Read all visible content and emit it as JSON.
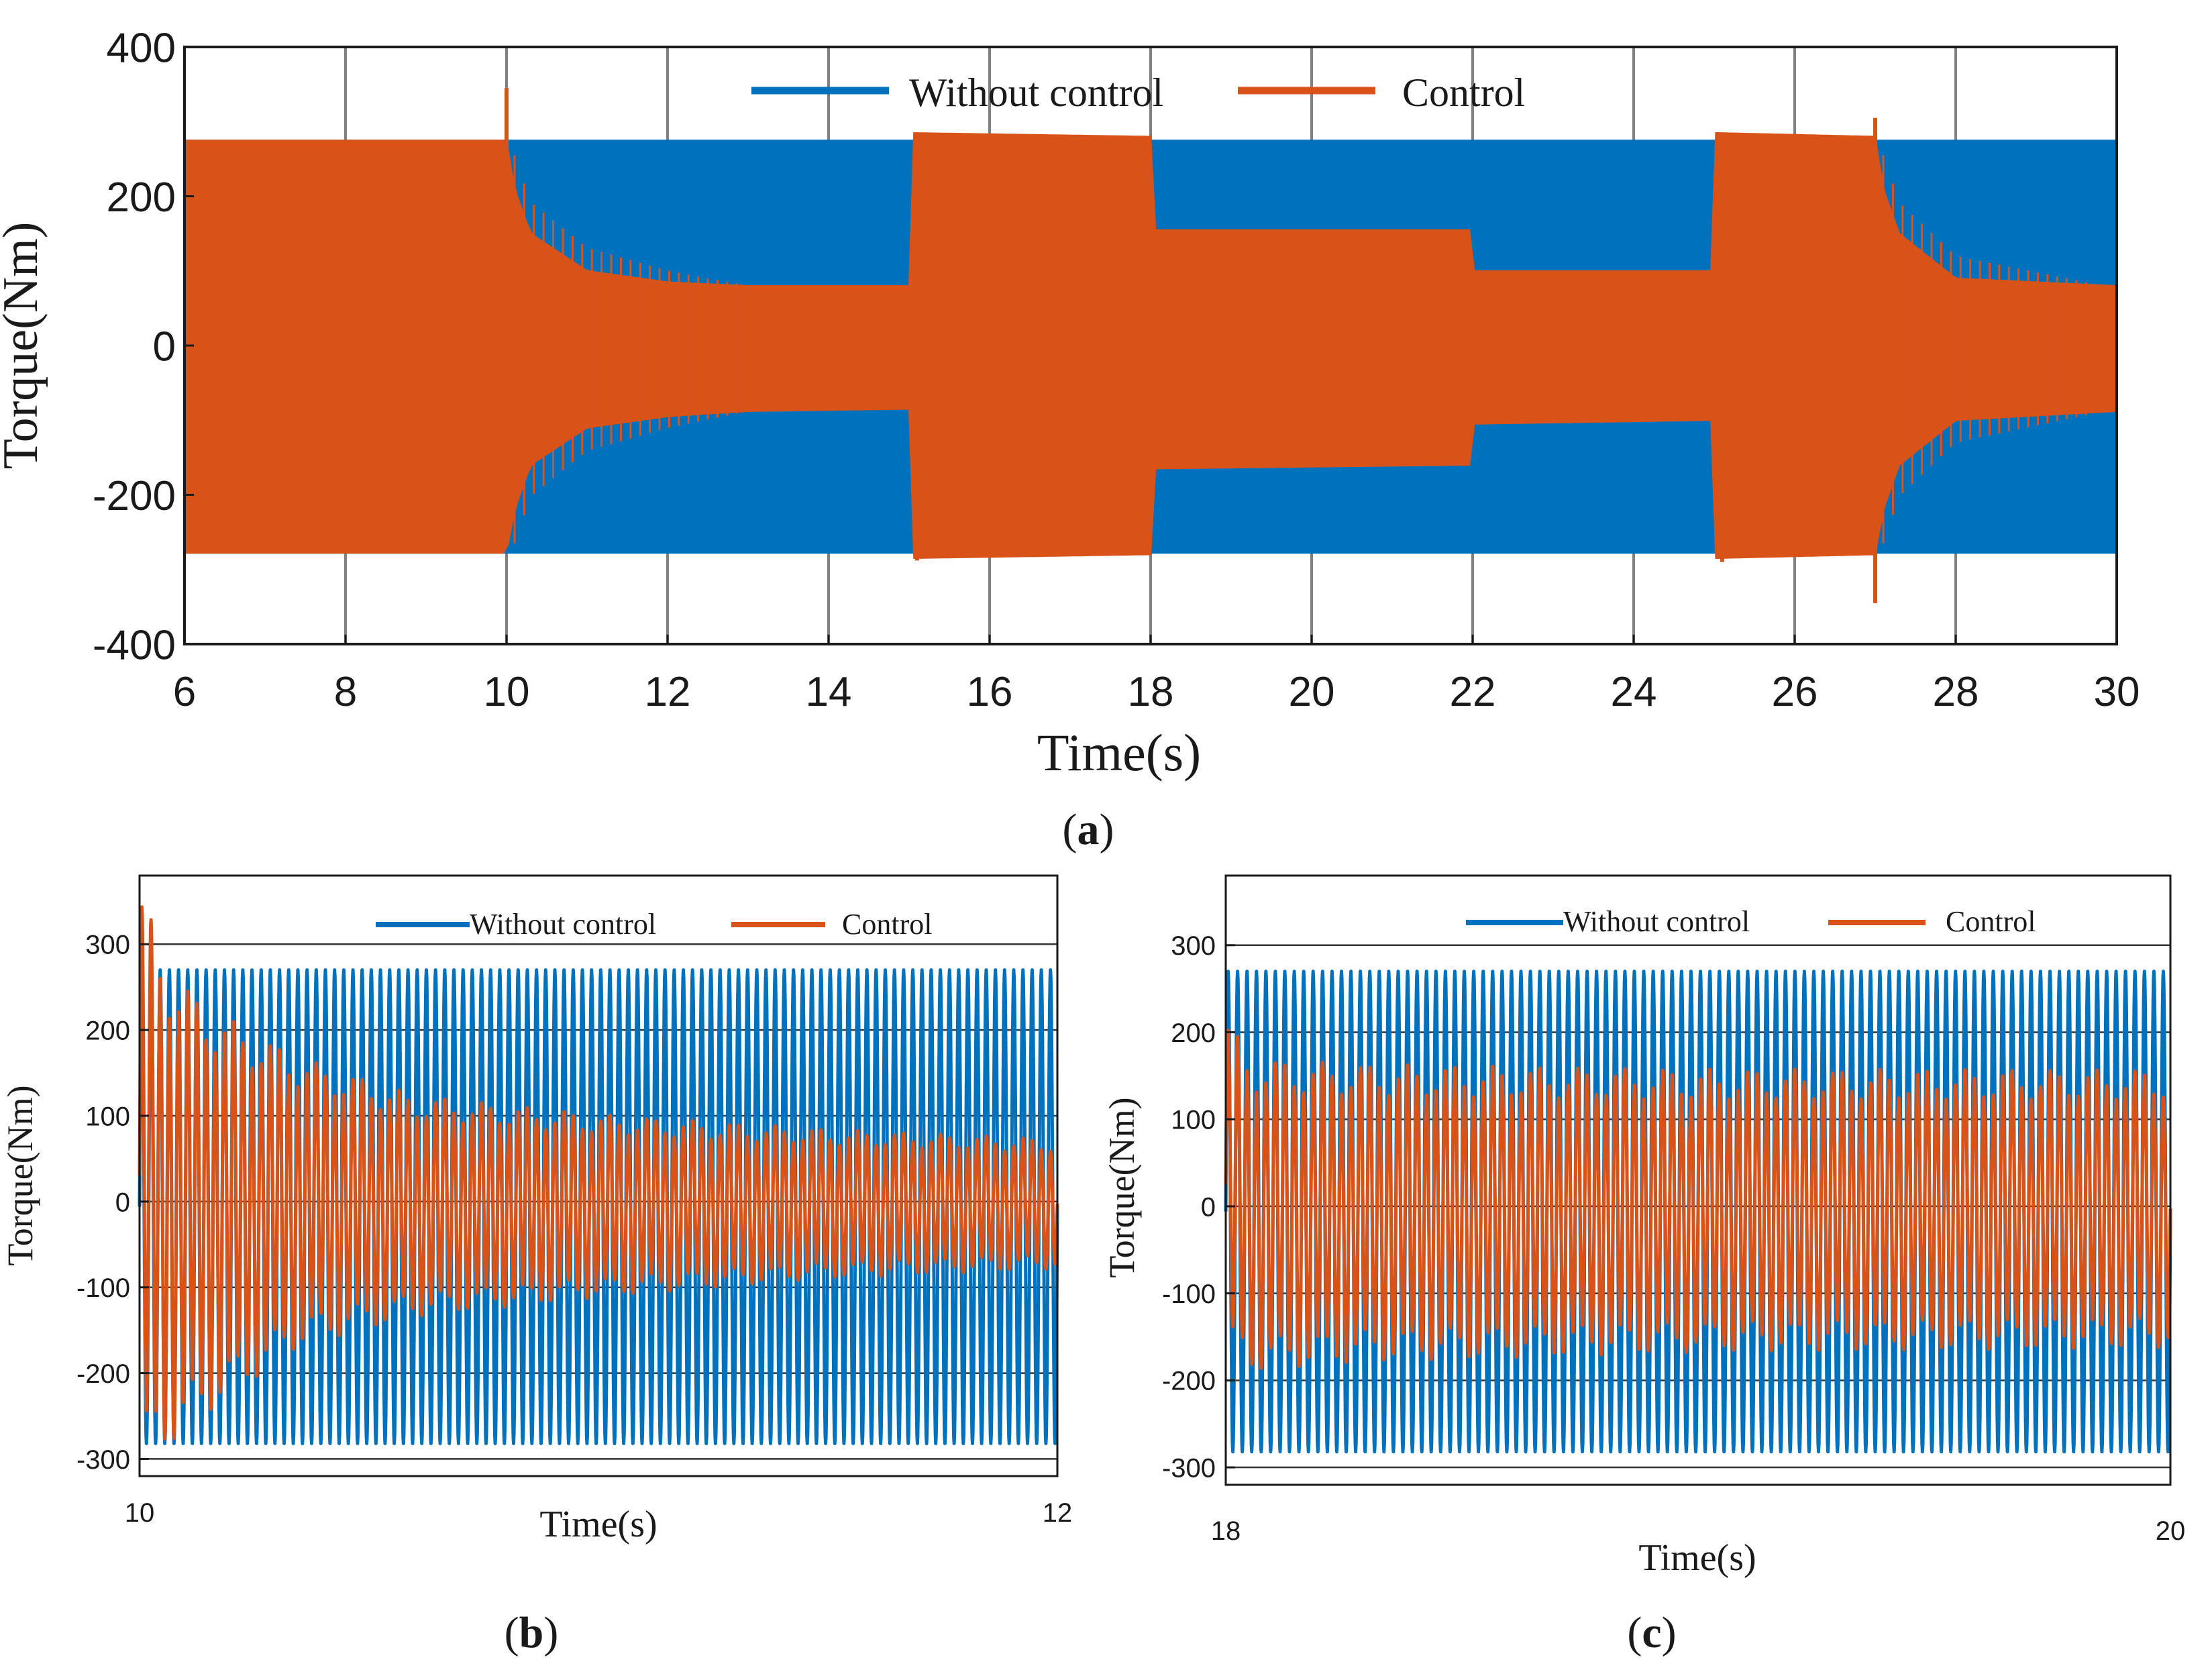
{
  "colors": {
    "without": "#0072BD",
    "control": "#D95319",
    "grid": "#808080",
    "axis": "#1a1a1a"
  },
  "chart_data": [
    {
      "id": "a",
      "type": "line",
      "caption": "a",
      "xlabel": "Time(s)",
      "ylabel": "Torque(Nm)",
      "xlim": [
        6,
        30
      ],
      "ylim": [
        -400,
        400
      ],
      "xticks": [
        6,
        8,
        10,
        12,
        14,
        16,
        18,
        20,
        22,
        24,
        26,
        28,
        30
      ],
      "yticks": [
        -400,
        -200,
        0,
        200,
        400
      ],
      "ytick_labels": [
        "-400",
        "-200",
        "0",
        "200",
        "400"
      ],
      "xtick_labels": [
        "6",
        "8",
        "10",
        "12",
        "14",
        "16",
        "18",
        "20",
        "22",
        "24",
        "26",
        "28",
        "30"
      ],
      "legend": [
        "Without control",
        "Control"
      ],
      "grid": "vertical",
      "series": [
        {
          "name": "Without control",
          "type": "envelope",
          "t": [
            6,
            30
          ],
          "upper": [
            275,
            275
          ],
          "lower": [
            -278,
            -278
          ]
        },
        {
          "name": "Control",
          "type": "envelope",
          "t": [
            6,
            10,
            10.1,
            10.3,
            11,
            12,
            13,
            15,
            15.01,
            18,
            18.01,
            22,
            22.01,
            25,
            25.01,
            27,
            27.1,
            27.3,
            28,
            30
          ],
          "upper": [
            275,
            275,
            210,
            150,
            100,
            85,
            80,
            80,
            285,
            280,
            155,
            155,
            100,
            100,
            285,
            280,
            210,
            150,
            90,
            80
          ],
          "lower": [
            -278,
            -278,
            -220,
            -160,
            -110,
            -95,
            -88,
            -85,
            -285,
            -280,
            -165,
            -160,
            -105,
            -100,
            -285,
            -280,
            -220,
            -160,
            -100,
            -88
          ],
          "spikes": [
            [
              10,
              345
            ],
            [
              15.1,
              -288
            ],
            [
              25.1,
              -290
            ],
            [
              27,
              -345
            ],
            [
              27,
              305
            ]
          ]
        }
      ]
    },
    {
      "id": "b",
      "type": "line",
      "caption": "b",
      "xlabel": "Time(s)",
      "ylabel": "Torque(Nm)",
      "xlim": [
        10,
        12
      ],
      "ylim": [
        -320,
        380
      ],
      "xticks": [
        10,
        12
      ],
      "xtick_labels": [
        "10",
        "12"
      ],
      "yticks": [
        -300,
        -200,
        -100,
        0,
        100,
        200,
        300
      ],
      "ytick_labels": [
        "-300",
        "-200",
        "-100",
        "0",
        "100",
        "200",
        "300"
      ],
      "legend": [
        "Without control",
        "Control"
      ],
      "grid": "horizontal",
      "series": [
        {
          "name": "Without control",
          "type": "oscillation",
          "frequency_hz": 50,
          "t": [
            10,
            12
          ],
          "upper": [
            270,
            270
          ],
          "lower": [
            -282,
            -282
          ]
        },
        {
          "name": "Control",
          "type": "oscillation",
          "frequency_hz": 50,
          "t": [
            10,
            10.05,
            10.15,
            10.35,
            10.6,
            11,
            11.5,
            12
          ],
          "upper": [
            340,
            250,
            200,
            150,
            110,
            90,
            75,
            65
          ],
          "lower": [
            -280,
            -260,
            -220,
            -150,
            -120,
            -100,
            -80,
            -70
          ]
        }
      ]
    },
    {
      "id": "c",
      "type": "line",
      "caption": "c",
      "xlabel": "Time(s)",
      "ylabel": "Torque(Nm)",
      "xlim": [
        18,
        20
      ],
      "ylim": [
        -320,
        380
      ],
      "xticks": [
        18,
        20
      ],
      "xtick_labels": [
        "18",
        "20"
      ],
      "yticks": [
        -300,
        -200,
        -100,
        0,
        100,
        200,
        300
      ],
      "ytick_labels": [
        "-300",
        "-200",
        "-100",
        "0",
        "100",
        "200",
        "300"
      ],
      "legend": [
        "Without control",
        "Control"
      ],
      "grid": "horizontal",
      "series": [
        {
          "name": "Without control",
          "type": "oscillation",
          "frequency_hz": 50,
          "t": [
            18,
            20
          ],
          "upper": [
            270,
            270
          ],
          "lower": [
            -282,
            -282
          ]
        },
        {
          "name": "Control",
          "type": "oscillation",
          "frequency_hz": 50,
          "t": [
            18,
            18.05,
            18.3,
            19,
            20
          ],
          "upper": [
            200,
            150,
            145,
            140,
            140
          ],
          "lower": [
            -150,
            -170,
            -160,
            -150,
            -145
          ]
        }
      ]
    }
  ]
}
